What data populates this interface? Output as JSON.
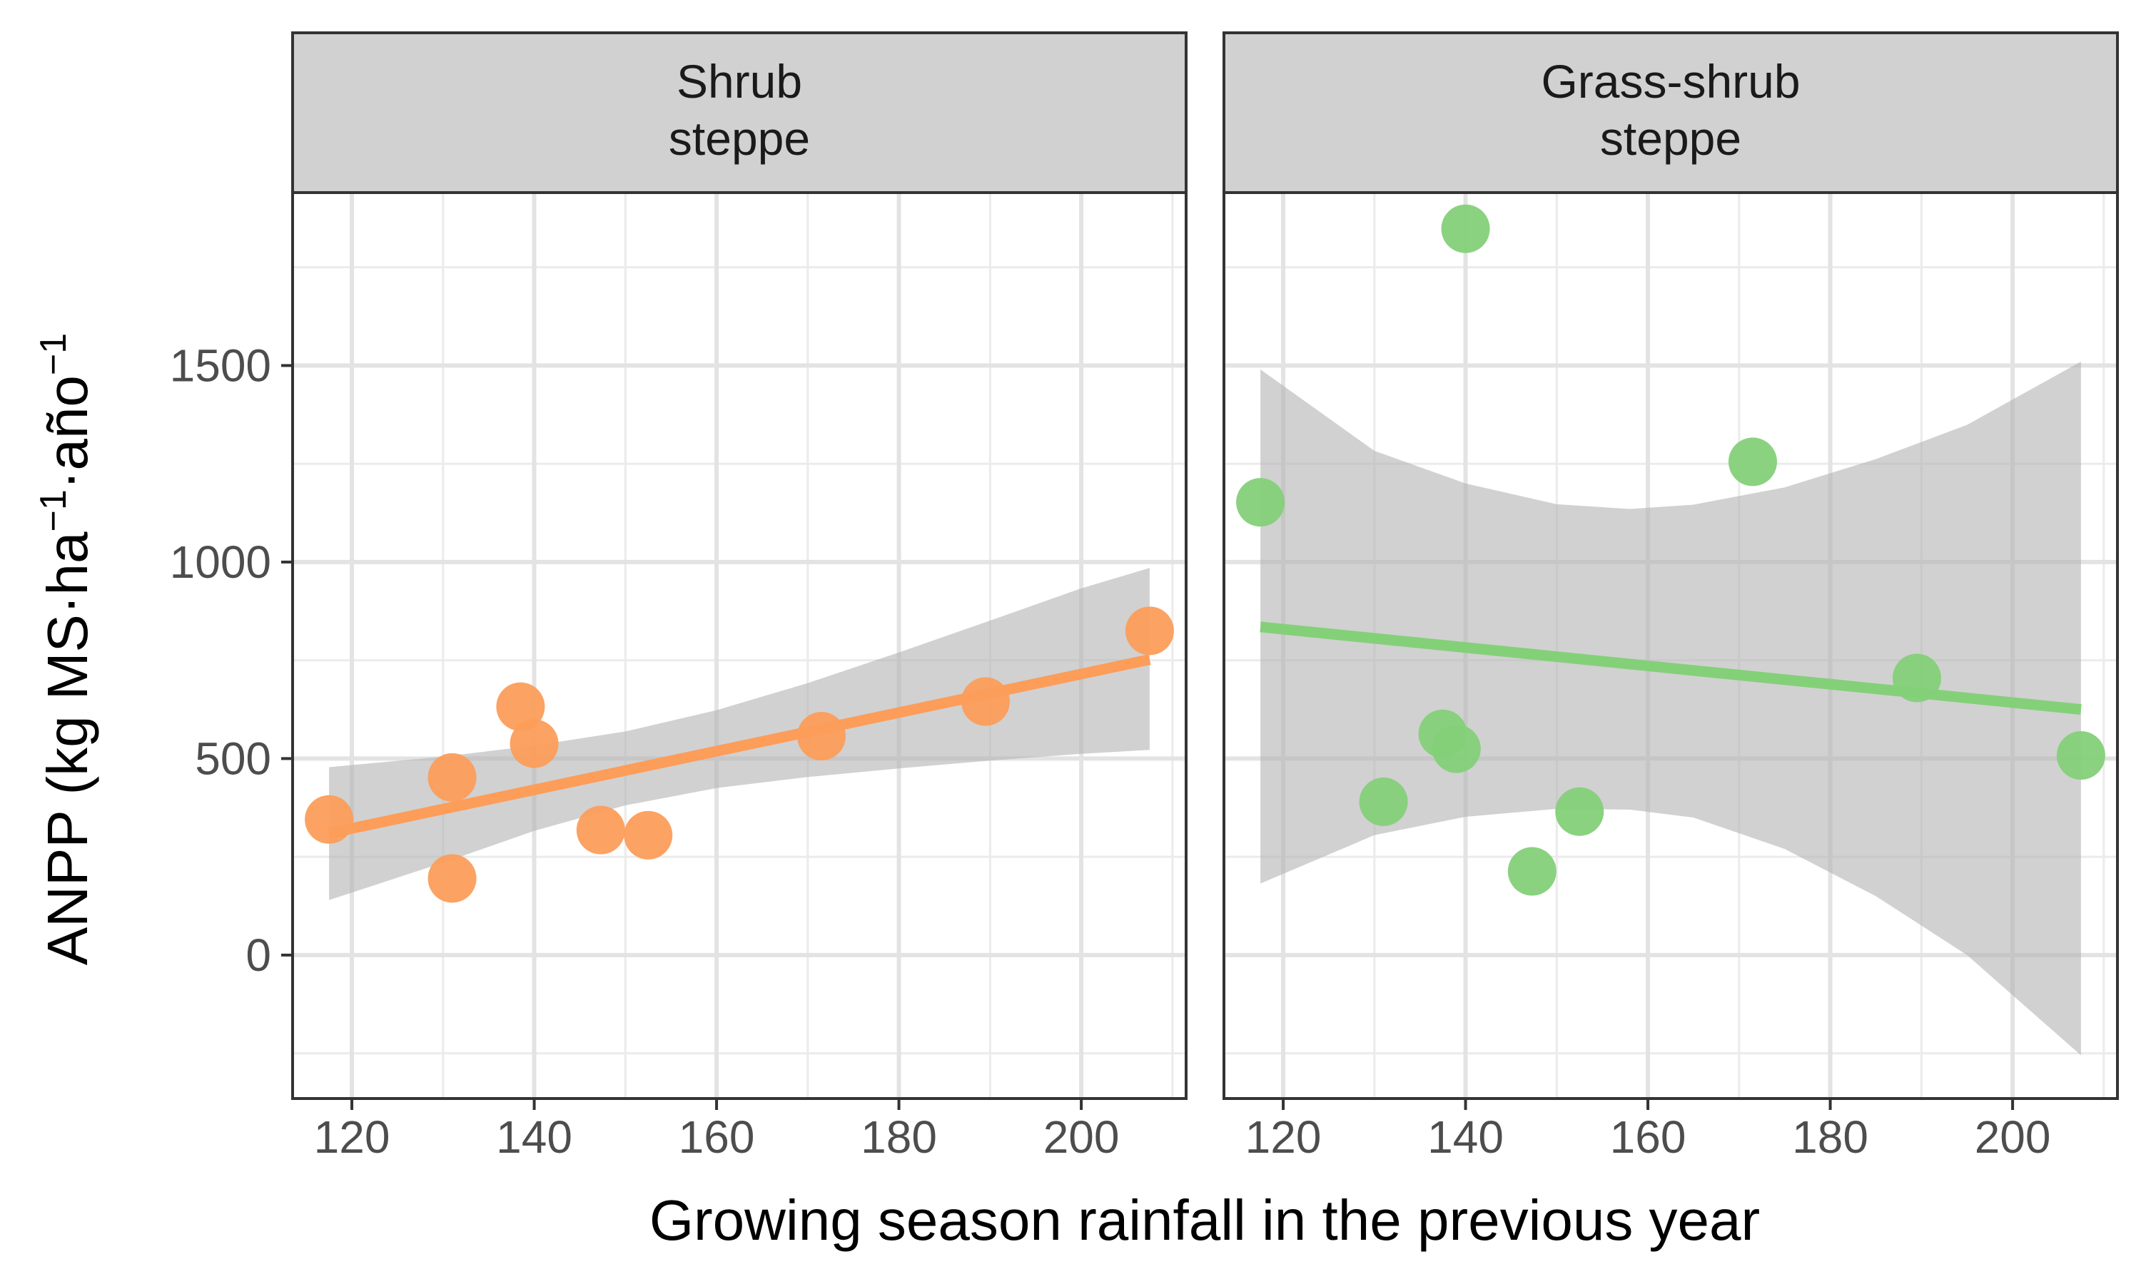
{
  "chart_data": {
    "type": "scatter",
    "xlabel": "Growing season rainfall in the previous year",
    "ylabel": {
      "prefix": "ANPP (kg MS·ha",
      "sup1": "−1",
      "middle": "·año",
      "sup2": "−1"
    },
    "xlim": [
      113.5,
      211.5
    ],
    "ylim": [
      -365,
      1940
    ],
    "x_ticks": [
      120,
      140,
      160,
      180,
      200
    ],
    "y_ticks": [
      0,
      500,
      1000,
      1500
    ],
    "grid": true,
    "facets": [
      {
        "title_lines": [
          "Shrub",
          "steppe"
        ],
        "color": "#fc9d5a",
        "points": [
          {
            "x": 117.5,
            "y": 345
          },
          {
            "x": 131.0,
            "y": 452
          },
          {
            "x": 131.0,
            "y": 195
          },
          {
            "x": 138.5,
            "y": 632
          },
          {
            "x": 140.0,
            "y": 538
          },
          {
            "x": 147.3,
            "y": 318
          },
          {
            "x": 152.5,
            "y": 305
          },
          {
            "x": 171.5,
            "y": 557
          },
          {
            "x": 189.5,
            "y": 645
          },
          {
            "x": 207.5,
            "y": 825
          }
        ],
        "fit": {
          "x": [
            117.5,
            207.5
          ],
          "y": [
            310,
            752
          ]
        },
        "band": {
          "x": [
            117.5,
            130,
            140,
            150,
            160,
            170,
            180,
            190,
            200,
            207.5
          ],
          "lower": [
            140,
            235,
            316,
            381,
            425,
            453,
            475,
            495,
            512,
            522
          ],
          "upper": [
            478,
            505,
            533,
            569,
            623,
            692,
            770,
            851,
            933,
            985
          ]
        }
      },
      {
        "title_lines": [
          "Grass-shrub",
          "steppe"
        ],
        "color": "#84d079",
        "points": [
          {
            "x": 117.5,
            "y": 1152
          },
          {
            "x": 131.0,
            "y": 390
          },
          {
            "x": 137.5,
            "y": 563
          },
          {
            "x": 139.0,
            "y": 525
          },
          {
            "x": 140.0,
            "y": 1848
          },
          {
            "x": 147.3,
            "y": 213
          },
          {
            "x": 152.5,
            "y": 365
          },
          {
            "x": 171.5,
            "y": 1255
          },
          {
            "x": 189.5,
            "y": 705
          },
          {
            "x": 207.5,
            "y": 508
          }
        ],
        "fit": {
          "x": [
            117.5,
            207.5
          ],
          "y": [
            835,
            625
          ]
        },
        "band": {
          "x": [
            117.5,
            130,
            140,
            150,
            158,
            165,
            175,
            185,
            195,
            207.5
          ],
          "lower": [
            182,
            305,
            352,
            372,
            370,
            350,
            270,
            150,
            0,
            -255
          ],
          "upper": [
            1490,
            1283,
            1200,
            1147,
            1135,
            1146,
            1190,
            1262,
            1349,
            1510
          ]
        }
      }
    ]
  }
}
